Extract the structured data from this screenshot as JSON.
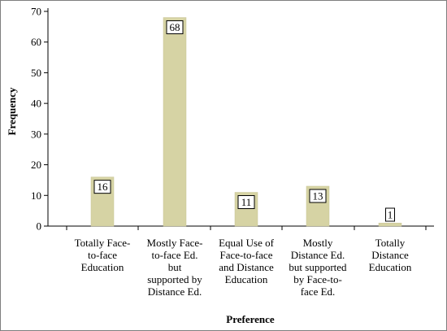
{
  "chart_data": {
    "type": "bar",
    "title": "",
    "xlabel": "Preference",
    "ylabel": "Frequency",
    "ylim": [
      0,
      70
    ],
    "yticks": [
      0,
      10,
      20,
      30,
      40,
      50,
      60,
      70
    ],
    "categories": [
      [
        "Totally Face-",
        "to-face",
        "Education"
      ],
      [
        "Mostly Face-",
        "to-face Ed.",
        "but",
        "supported by",
        "Distance Ed."
      ],
      [
        "Equal Use of",
        "Face-to-face",
        "and Distance",
        "Education"
      ],
      [
        "Mostly",
        "Distance Ed.",
        "but supported",
        "by Face-to-",
        "face Ed."
      ],
      [
        "Totally",
        "Distance",
        "Education"
      ]
    ],
    "values": [
      16,
      68,
      11,
      13,
      1
    ],
    "grid": false,
    "legend": "none",
    "colors": {
      "bar": "#d6d3a4",
      "bar_stroke": "#c8c494",
      "axis": "#000000"
    }
  }
}
